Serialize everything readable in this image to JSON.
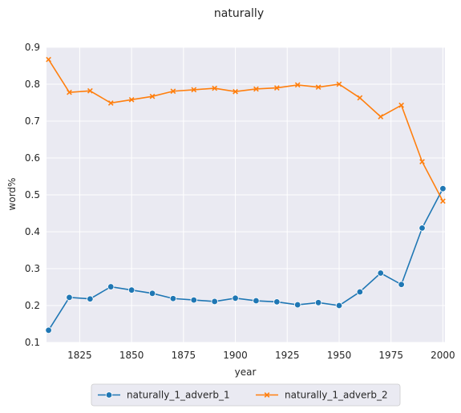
{
  "chart_data": {
    "type": "line",
    "title": "naturally",
    "xlabel": "year",
    "ylabel": "word%",
    "xlim": [
      1809,
      2001
    ],
    "ylim": [
      0.1,
      0.9
    ],
    "xticks": [
      1825,
      1850,
      1875,
      1900,
      1925,
      1950,
      1975,
      2000
    ],
    "yticks": [
      0.1,
      0.2,
      0.3,
      0.4,
      0.5,
      0.6,
      0.7,
      0.8,
      0.9
    ],
    "grid": true,
    "legend_position": "bottom-center",
    "x": [
      1810,
      1820,
      1830,
      1840,
      1850,
      1860,
      1870,
      1880,
      1890,
      1900,
      1910,
      1920,
      1930,
      1940,
      1950,
      1960,
      1970,
      1980,
      1990,
      2000
    ],
    "series": [
      {
        "name": "naturally_1_adverb_1",
        "color": "#1f77b4",
        "marker": "circle",
        "values": [
          0.133,
          0.222,
          0.218,
          0.251,
          0.242,
          0.233,
          0.219,
          0.215,
          0.211,
          0.22,
          0.213,
          0.21,
          0.202,
          0.208,
          0.2,
          0.237,
          0.288,
          0.257,
          0.41,
          0.517
        ]
      },
      {
        "name": "naturally_1_adverb_2",
        "color": "#ff7f0e",
        "marker": "x",
        "values": [
          0.867,
          0.778,
          0.782,
          0.749,
          0.758,
          0.767,
          0.781,
          0.785,
          0.789,
          0.78,
          0.787,
          0.79,
          0.798,
          0.792,
          0.8,
          0.763,
          0.712,
          0.743,
          0.59,
          0.483
        ]
      }
    ]
  }
}
